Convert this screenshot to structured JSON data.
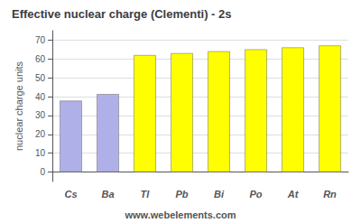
{
  "chart_data": {
    "type": "bar",
    "title": "Effective nuclear charge (Clementi) - 2s",
    "ylabel": "nuclear charge units",
    "annotation": "www.webelements.com",
    "categories": [
      "Cs",
      "Ba",
      "Tl",
      "Pb",
      "Bi",
      "Po",
      "At",
      "Rn"
    ],
    "values": [
      37.85,
      41.35,
      62.03,
      63.05,
      64.07,
      65.09,
      66.11,
      67.13
    ],
    "colors": [
      "#b0b0e8",
      "#b0b0e8",
      "#ffff00",
      "#ffff00",
      "#ffff00",
      "#ffff00",
      "#ffff00",
      "#ffff00"
    ],
    "ylim": [
      -5,
      75
    ],
    "yticks": [
      0,
      10,
      20,
      30,
      40,
      50,
      60,
      70
    ],
    "grid": true
  }
}
